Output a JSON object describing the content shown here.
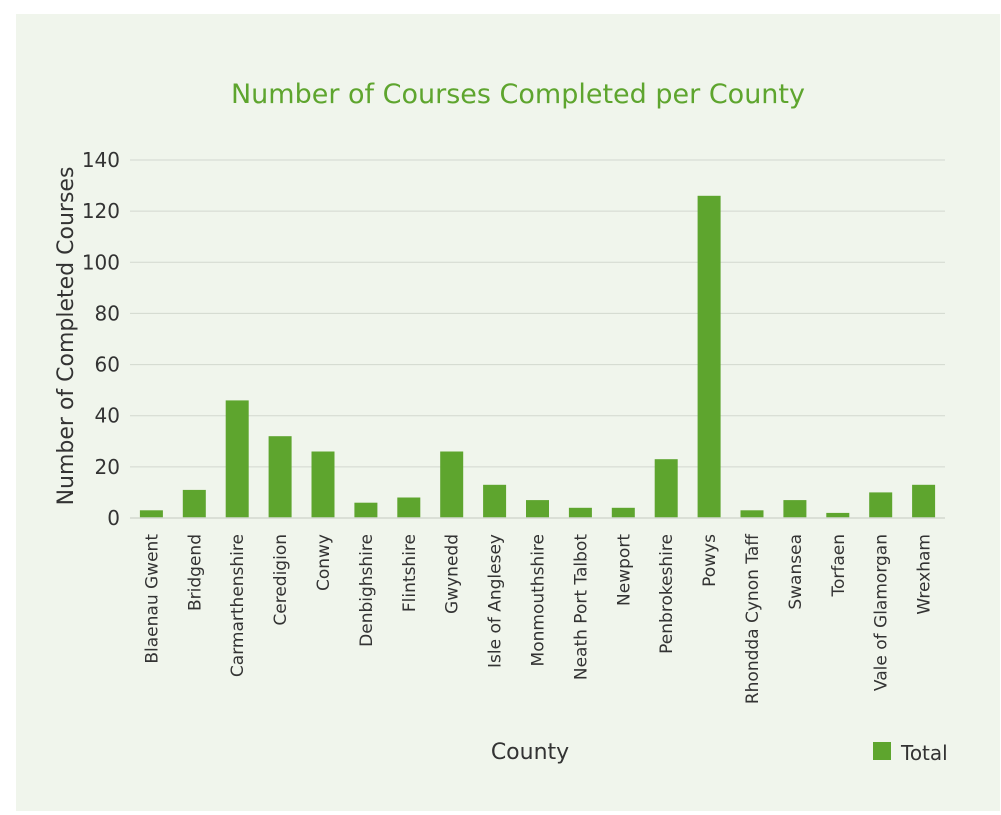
{
  "colors": {
    "background": "#f0f5ec",
    "bar": "#5ea52e",
    "title": "#5ea52e",
    "grid": "#d2d8cf",
    "text": "#333333"
  },
  "chart_data": {
    "type": "bar",
    "title": "Number of Courses Completed per County",
    "xlabel": "County",
    "ylabel": "Number of Completed Courses",
    "ylim": [
      0,
      140
    ],
    "yticks": [
      0,
      20,
      40,
      60,
      80,
      100,
      120,
      140
    ],
    "grid": true,
    "legend_position": "bottom-right",
    "categories": [
      "Blaenau Gwent",
      "Bridgend",
      "Carmarthenshire",
      "Ceredigion",
      "Conwy",
      "Denbighshire",
      "Flintshire",
      "Gwynedd",
      "Isle of Anglesey",
      "Monmouthshire",
      "Neath Port Talbot",
      "Newport",
      "Penbrokeshire",
      "Powys",
      "Rhondda Cynon Taff",
      "Swansea",
      "Torfaen",
      "Vale of Glamorgan",
      "Wrexham"
    ],
    "series": [
      {
        "name": "Total",
        "values": [
          3,
          11,
          46,
          32,
          26,
          6,
          8,
          26,
          13,
          7,
          4,
          4,
          23,
          126,
          3,
          7,
          2,
          10,
          13
        ]
      }
    ]
  }
}
